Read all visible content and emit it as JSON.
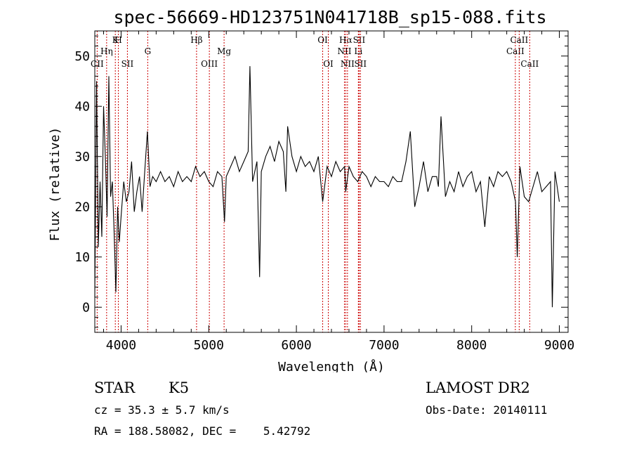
{
  "chart_data": {
    "type": "line",
    "title": "spec-56669-HD123751N041718B_sp15-088.fits",
    "xlabel": "Wavelength (Å)",
    "ylabel": "Flux (relative)",
    "xlim": [
      3700,
      9100
    ],
    "ylim": [
      -5,
      55
    ],
    "xticks": [
      4000,
      5000,
      6000,
      7000,
      8000,
      9000
    ],
    "yticks": [
      0,
      10,
      20,
      30,
      40,
      50
    ],
    "grid": false,
    "line_color": "#000000",
    "marker_color": "#cc0000",
    "spectral_lines": [
      {
        "name": "CII",
        "wavelength": 3727,
        "row": 2
      },
      {
        "name": "Hη",
        "wavelength": 3835,
        "row": 1
      },
      {
        "name": "K",
        "wavelength": 3934,
        "row": 0
      },
      {
        "name": "H",
        "wavelength": 3969,
        "row": 0
      },
      {
        "name": "SII",
        "wavelength": 4072,
        "row": 2
      },
      {
        "name": "G",
        "wavelength": 4304,
        "row": 1
      },
      {
        "name": "Hβ",
        "wavelength": 4861,
        "row": 0
      },
      {
        "name": "OIII",
        "wavelength": 5007,
        "row": 2
      },
      {
        "name": "Mg",
        "wavelength": 5175,
        "row": 1
      },
      {
        "name": "OI",
        "wavelength": 6300,
        "row": 0
      },
      {
        "name": "OI",
        "wavelength": 6364,
        "row": 2
      },
      {
        "name": "NII",
        "wavelength": 6548,
        "row": 1
      },
      {
        "name": "Hα",
        "wavelength": 6563,
        "row": 0
      },
      {
        "name": "NII",
        "wavelength": 6583,
        "row": 2
      },
      {
        "name": "SII",
        "wavelength": 6716,
        "row": 0
      },
      {
        "name": "Li",
        "wavelength": 6707,
        "row": 1
      },
      {
        "name": "SII",
        "wavelength": 6731,
        "row": 2
      },
      {
        "name": "CaII",
        "wavelength": 8498,
        "row": 1
      },
      {
        "name": "CaII",
        "wavelength": 8542,
        "row": 0
      },
      {
        "name": "CaII",
        "wavelength": 8662,
        "row": 2
      }
    ],
    "series": [
      {
        "x": [
          3700,
          3720,
          3740,
          3760,
          3780,
          3800,
          3820,
          3840,
          3860,
          3880,
          3900,
          3920,
          3940,
          3960,
          3980,
          4000,
          4030,
          4060,
          4090,
          4120,
          4150,
          4180,
          4210,
          4240,
          4270,
          4300,
          4330,
          4360,
          4400,
          4450,
          4500,
          4550,
          4600,
          4650,
          4700,
          4750,
          4800,
          4850,
          4900,
          4950,
          5000,
          5050,
          5100,
          5150,
          5180,
          5200,
          5250,
          5300,
          5350,
          5400,
          5450,
          5470,
          5500,
          5550,
          5580,
          5600,
          5650,
          5700,
          5750,
          5800,
          5850,
          5880,
          5900,
          5950,
          6000,
          6050,
          6100,
          6150,
          6200,
          6250,
          6300,
          6350,
          6400,
          6450,
          6500,
          6550,
          6563,
          6600,
          6650,
          6700,
          6750,
          6800,
          6850,
          6900,
          6950,
          7000,
          7050,
          7100,
          7150,
          7200,
          7250,
          7300,
          7350,
          7400,
          7450,
          7500,
          7550,
          7600,
          7620,
          7650,
          7700,
          7750,
          7800,
          7850,
          7900,
          7950,
          8000,
          8050,
          8100,
          8150,
          8200,
          8250,
          8300,
          8350,
          8400,
          8450,
          8500,
          8520,
          8550,
          8600,
          8650,
          8700,
          8750,
          8800,
          8850,
          8900,
          8920,
          8950,
          9000
        ],
        "y": [
          2,
          45,
          12,
          25,
          14,
          40,
          30,
          18,
          46,
          22,
          25,
          15,
          3,
          20,
          13,
          18,
          25,
          21,
          23,
          29,
          19,
          23,
          26,
          19,
          27,
          35,
          24,
          26,
          25,
          27,
          25,
          26,
          24,
          27,
          25,
          26,
          25,
          28,
          26,
          27,
          25,
          24,
          27,
          26,
          17,
          26,
          28,
          30,
          27,
          29,
          31,
          48,
          25,
          29,
          6,
          27,
          30,
          32,
          29,
          33,
          31,
          23,
          36,
          30,
          27,
          30,
          28,
          29,
          27,
          30,
          21,
          28,
          26,
          29,
          27,
          28,
          23,
          28,
          26,
          25,
          27,
          26,
          24,
          26,
          25,
          25,
          24,
          26,
          25,
          25,
          29,
          35,
          20,
          24,
          29,
          23,
          26,
          26,
          24,
          38,
          22,
          25,
          23,
          27,
          24,
          26,
          27,
          23,
          25,
          16,
          26,
          24,
          27,
          26,
          27,
          25,
          21,
          10,
          28,
          22,
          21,
          24,
          27,
          23,
          24,
          25,
          0,
          27,
          21
        ]
      }
    ]
  },
  "footer": {
    "object_class": "STAR",
    "subclass": "K5",
    "survey": "LAMOST DR2",
    "cz": "cz = 35.3 ± 5.7 km/s",
    "obs_date": "Obs-Date: 20140111",
    "coords": "RA = 188.58082, DEC =    5.42792"
  }
}
